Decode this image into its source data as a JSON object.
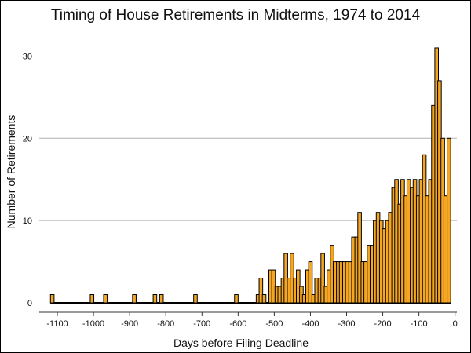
{
  "chart_data": {
    "type": "bar",
    "title": "Timing of House Retirements in Midterms, 1974 to 2014",
    "xlabel": "Days before Filing Deadline",
    "ylabel": "Number of Retirements",
    "xlim": [
      -1150,
      5
    ],
    "ylim": [
      0,
      33
    ],
    "xticks": [
      -1100,
      -1000,
      -900,
      -800,
      -700,
      -600,
      -500,
      -400,
      -300,
      -200,
      -100,
      0
    ],
    "xtick_labels": [
      "-1100",
      "-1000",
      "-900",
      "-800",
      "-700",
      "-600",
      "-500",
      "-400",
      "-300",
      "-200",
      "-100",
      "0"
    ],
    "yticks": [
      0,
      10,
      20,
      30
    ],
    "ytick_labels": [
      "0",
      "10",
      "20",
      "30"
    ],
    "grid": "horizontal",
    "legend": "none",
    "bin_width": 10,
    "bar_color": "#f5a623",
    "edge_color": "#000000",
    "bins": [
      {
        "x": -1114,
        "y": 1
      },
      {
        "x": -1004,
        "y": 1
      },
      {
        "x": -967,
        "y": 1
      },
      {
        "x": -887,
        "y": 1
      },
      {
        "x": -830,
        "y": 1
      },
      {
        "x": -812,
        "y": 1
      },
      {
        "x": -718,
        "y": 1
      },
      {
        "x": -605,
        "y": 1
      },
      {
        "x": -545,
        "y": 1
      },
      {
        "x": -537,
        "y": 3
      },
      {
        "x": -528,
        "y": 1
      },
      {
        "x": -510,
        "y": 4
      },
      {
        "x": -502,
        "y": 4
      },
      {
        "x": -493,
        "y": 2
      },
      {
        "x": -485,
        "y": 2
      },
      {
        "x": -476,
        "y": 3
      },
      {
        "x": -468,
        "y": 6
      },
      {
        "x": -459,
        "y": 3
      },
      {
        "x": -451,
        "y": 6
      },
      {
        "x": -442,
        "y": 3
      },
      {
        "x": -434,
        "y": 4
      },
      {
        "x": -425,
        "y": 2
      },
      {
        "x": -417,
        "y": 1
      },
      {
        "x": -408,
        "y": 4
      },
      {
        "x": -400,
        "y": 5
      },
      {
        "x": -391,
        "y": 1
      },
      {
        "x": -383,
        "y": 3
      },
      {
        "x": -374,
        "y": 3
      },
      {
        "x": -366,
        "y": 6
      },
      {
        "x": -357,
        "y": 2
      },
      {
        "x": -349,
        "y": 4
      },
      {
        "x": -340,
        "y": 7
      },
      {
        "x": -332,
        "y": 5
      },
      {
        "x": -323,
        "y": 5
      },
      {
        "x": -315,
        "y": 5
      },
      {
        "x": -306,
        "y": 5
      },
      {
        "x": -298,
        "y": 5
      },
      {
        "x": -289,
        "y": 5
      },
      {
        "x": -281,
        "y": 8
      },
      {
        "x": -272,
        "y": 8
      },
      {
        "x": -264,
        "y": 11
      },
      {
        "x": -255,
        "y": 5
      },
      {
        "x": -247,
        "y": 5
      },
      {
        "x": -238,
        "y": 7
      },
      {
        "x": -230,
        "y": 7
      },
      {
        "x": -221,
        "y": 10
      },
      {
        "x": -213,
        "y": 11
      },
      {
        "x": -204,
        "y": 10
      },
      {
        "x": -196,
        "y": 9
      },
      {
        "x": -187,
        "y": 10
      },
      {
        "x": -179,
        "y": 11
      },
      {
        "x": -170,
        "y": 14
      },
      {
        "x": -162,
        "y": 15
      },
      {
        "x": -153,
        "y": 12
      },
      {
        "x": -145,
        "y": 15
      },
      {
        "x": -136,
        "y": 13
      },
      {
        "x": -128,
        "y": 15
      },
      {
        "x": -119,
        "y": 14
      },
      {
        "x": -111,
        "y": 15
      },
      {
        "x": -102,
        "y": 13
      },
      {
        "x": -94,
        "y": 15
      },
      {
        "x": -85,
        "y": 18
      },
      {
        "x": -77,
        "y": 13
      },
      {
        "x": -68,
        "y": 15
      },
      {
        "x": -60,
        "y": 24
      },
      {
        "x": -51,
        "y": 31
      },
      {
        "x": -43,
        "y": 27
      },
      {
        "x": -34,
        "y": 20
      },
      {
        "x": -26,
        "y": 13
      },
      {
        "x": -17,
        "y": 20
      }
    ]
  }
}
